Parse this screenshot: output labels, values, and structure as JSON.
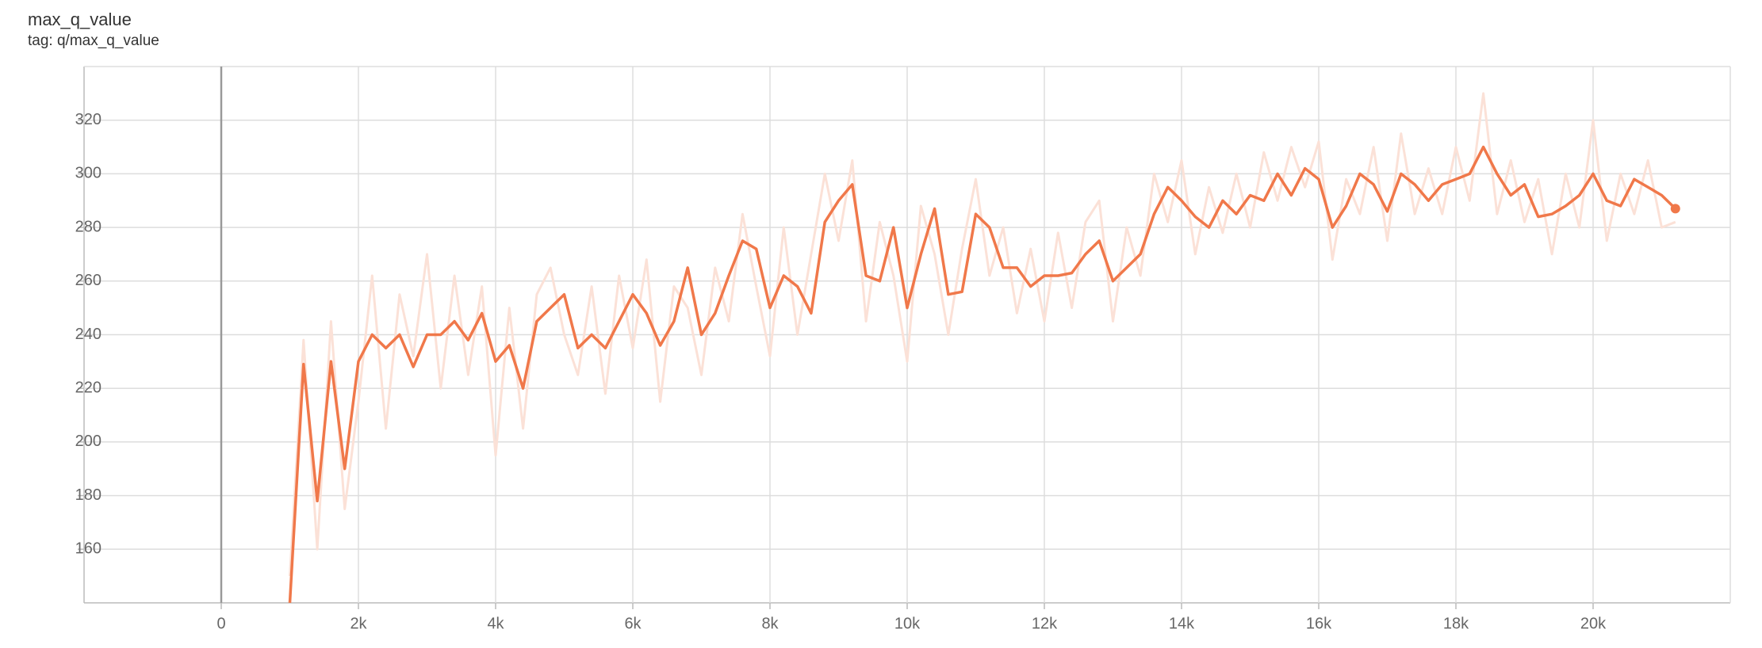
{
  "chart_data": {
    "type": "line",
    "title": "max_q_value",
    "subtitle": "tag: q/max_q_value",
    "x": [
      1000,
      1200,
      1400,
      1600,
      1800,
      2000,
      2200,
      2400,
      2600,
      2800,
      3000,
      3200,
      3400,
      3600,
      3800,
      4000,
      4200,
      4400,
      4600,
      4800,
      5000,
      5200,
      5400,
      5600,
      5800,
      6000,
      6200,
      6400,
      6600,
      6800,
      7000,
      7200,
      7400,
      7600,
      7800,
      8000,
      8200,
      8400,
      8600,
      8800,
      9000,
      9200,
      9400,
      9600,
      9800,
      10000,
      10200,
      10400,
      10600,
      10800,
      11000,
      11200,
      11400,
      11600,
      11800,
      12000,
      12200,
      12400,
      12600,
      12800,
      13000,
      13200,
      13400,
      13600,
      13800,
      14000,
      14200,
      14400,
      14600,
      14800,
      15000,
      15200,
      15400,
      15600,
      15800,
      16000,
      16200,
      16400,
      16600,
      16800,
      17000,
      17200,
      17400,
      17600,
      17800,
      18000,
      18200,
      18400,
      18600,
      18800,
      19000,
      19200,
      19400,
      19600,
      19800,
      20000,
      20200,
      20400,
      20600,
      20800,
      21000,
      21200
    ],
    "series": [
      {
        "color": "#fbe1d7",
        "values": [
          150,
          238,
          160,
          245,
          175,
          215,
          262,
          205,
          255,
          232,
          270,
          220,
          262,
          225,
          258,
          195,
          250,
          205,
          255,
          265,
          240,
          225,
          258,
          218,
          262,
          235,
          268,
          215,
          258,
          250,
          225,
          265,
          245,
          285,
          258,
          232,
          280,
          240,
          270,
          300,
          275,
          305,
          245,
          282,
          262,
          230,
          288,
          270,
          240,
          272,
          298,
          262,
          280,
          248,
          272,
          245,
          278,
          250,
          282,
          290,
          245,
          280,
          262,
          300,
          282,
          305,
          270,
          295,
          278,
          300,
          280,
          308,
          290,
          310,
          295,
          312,
          268,
          298,
          285,
          310,
          275,
          315,
          285,
          302,
          285,
          310,
          290,
          330,
          285,
          305,
          282,
          298,
          270,
          300,
          280,
          320,
          275,
          300,
          285,
          305,
          280,
          282
        ]
      },
      {
        "color": "#f0784a",
        "values": [
          140,
          229,
          178,
          230,
          190,
          230,
          240,
          235,
          240,
          228,
          240,
          240,
          245,
          238,
          248,
          230,
          236,
          220,
          245,
          250,
          255,
          235,
          240,
          235,
          245,
          255,
          248,
          236,
          245,
          265,
          240,
          248,
          262,
          275,
          272,
          250,
          262,
          258,
          248,
          282,
          290,
          296,
          262,
          260,
          280,
          250,
          270,
          287,
          255,
          256,
          285,
          280,
          265,
          265,
          258,
          262,
          262,
          263,
          270,
          275,
          260,
          265,
          270,
          285,
          295,
          290,
          284,
          280,
          290,
          285,
          292,
          290,
          300,
          292,
          302,
          298,
          280,
          288,
          300,
          296,
          286,
          300,
          296,
          290,
          296,
          298,
          300,
          310,
          300,
          292,
          296,
          284,
          285,
          288,
          292,
          300,
          290,
          288,
          298,
          295,
          292,
          287
        ]
      }
    ],
    "xlim": [
      -2000,
      22000
    ],
    "xticks": [
      0,
      {
        "value": 2000,
        "label": "2k"
      },
      {
        "value": 4000,
        "label": "4k"
      },
      {
        "value": 6000,
        "label": "6k"
      },
      {
        "value": 8000,
        "label": "8k"
      },
      {
        "value": 10000,
        "label": "10k"
      },
      {
        "value": 12000,
        "label": "12k"
      },
      {
        "value": 14000,
        "label": "14k"
      },
      {
        "value": 16000,
        "label": "16k"
      },
      {
        "value": 18000,
        "label": "18k"
      },
      {
        "value": 20000,
        "label": "20k"
      }
    ],
    "ylim": [
      140,
      340
    ],
    "yticks": [
      160,
      180,
      200,
      220,
      240,
      260,
      280,
      300,
      320
    ],
    "grid": true
  }
}
